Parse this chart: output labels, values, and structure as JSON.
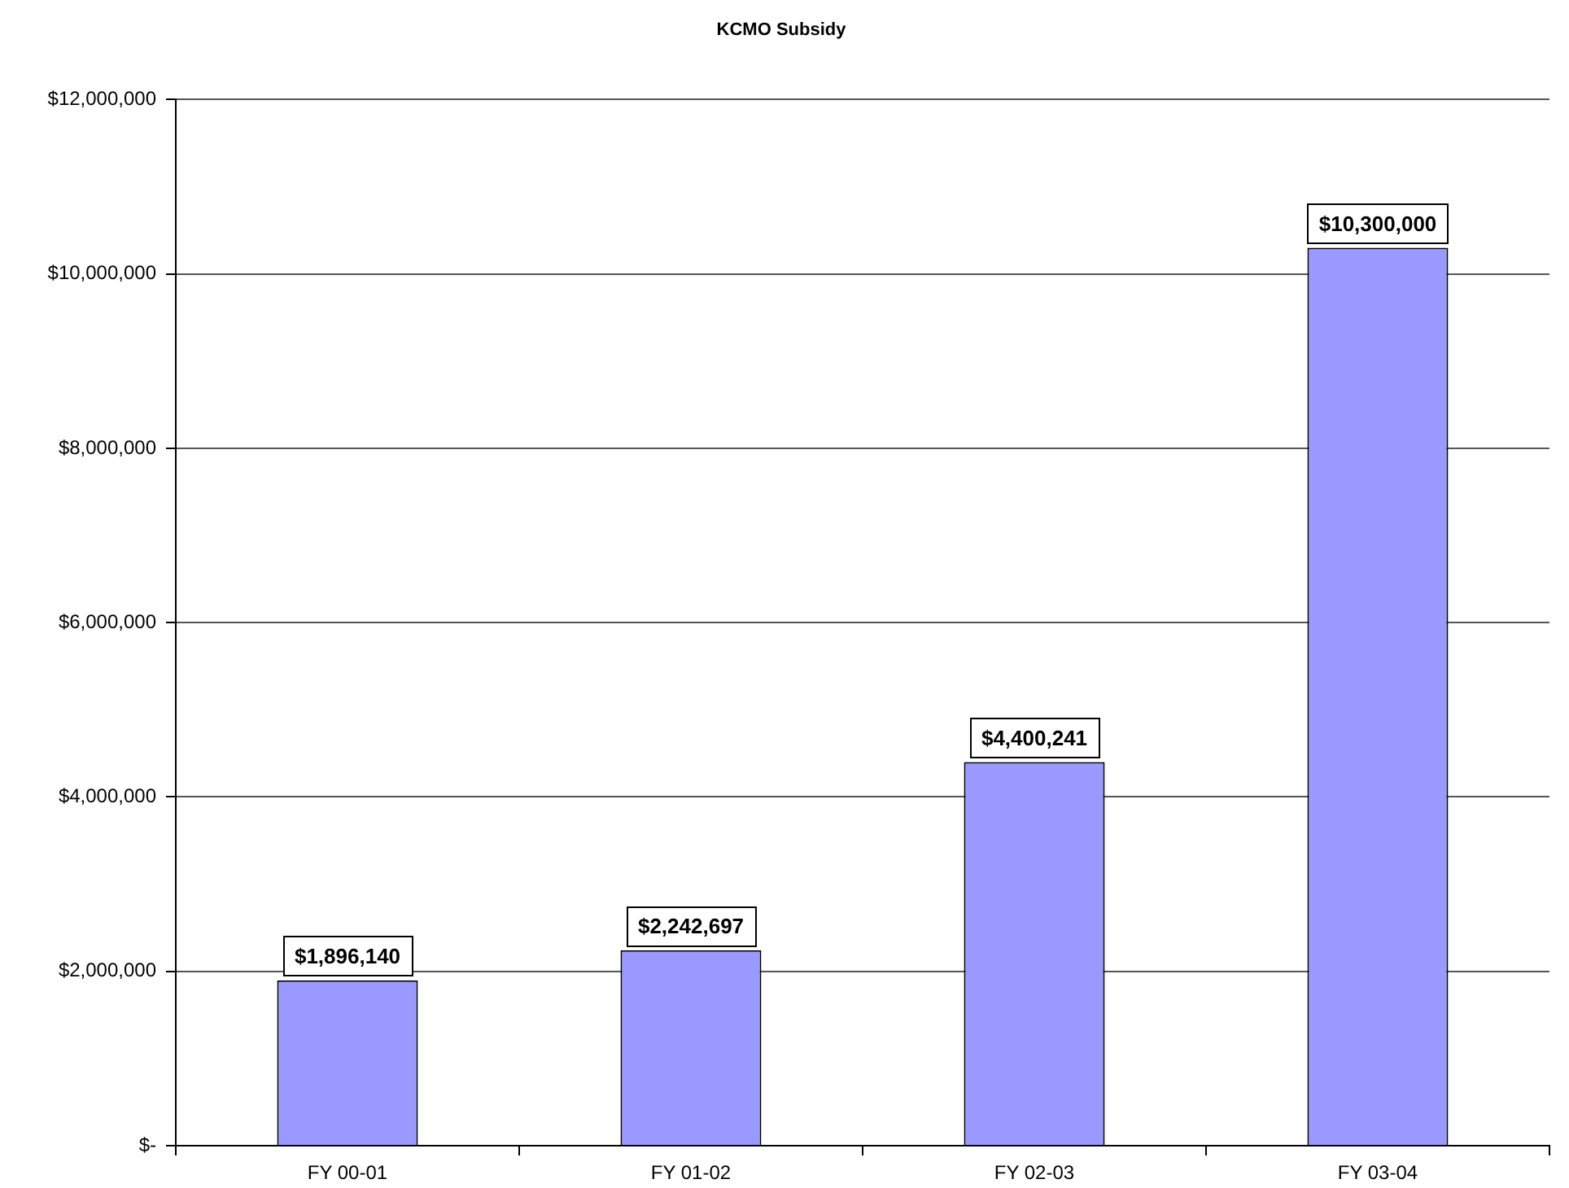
{
  "chart_data": {
    "type": "bar",
    "title": "KCMO Subsidy",
    "categories": [
      "FY 00-01",
      "FY 01-02",
      "FY 02-03",
      "FY 03-04"
    ],
    "values": [
      1896140,
      2242697,
      4400241,
      10300000
    ],
    "value_labels": [
      "$1,896,140",
      "$2,242,697",
      "$4,400,241",
      "$10,300,000"
    ],
    "color": "#9999ff",
    "ylim": [
      0,
      12000000
    ],
    "yticks": [
      {
        "value": 0,
        "label": "$-"
      },
      {
        "value": 2000000,
        "label": "$2,000,000"
      },
      {
        "value": 4000000,
        "label": "$4,000,000"
      },
      {
        "value": 6000000,
        "label": "$6,000,000"
      },
      {
        "value": 8000000,
        "label": "$8,000,000"
      },
      {
        "value": 10000000,
        "label": "$10,000,000"
      },
      {
        "value": 12000000,
        "label": "$12,000,000"
      }
    ],
    "grid": "y"
  }
}
